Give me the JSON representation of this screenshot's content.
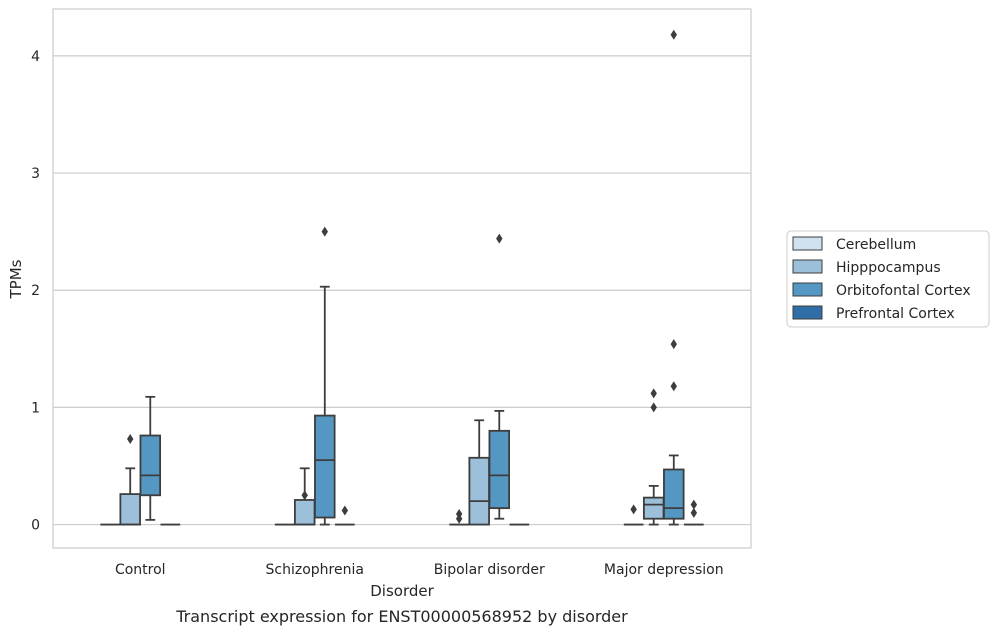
{
  "chart_data": {
    "type": "box",
    "title": "",
    "caption": "Transcript expression for ENST00000568952 by disorder",
    "xlabel": "Disorder",
    "ylabel": "TPMs",
    "ylim": [
      -0.2,
      4.4
    ],
    "yticks": [
      0,
      1,
      2,
      3,
      4
    ],
    "grid": "horizontal",
    "legend_position": "right",
    "categories": [
      "Control",
      "Schizophrenia",
      "Bipolar disorder",
      "Major depression"
    ],
    "series": [
      {
        "name": "Cerebellum",
        "color": "#d0e1ef",
        "boxes": [
          {
            "q1": 0,
            "median": 0,
            "q3": 0,
            "whisker_low": 0,
            "whisker_high": 0,
            "outliers": []
          },
          {
            "q1": 0,
            "median": 0,
            "q3": 0,
            "whisker_low": 0,
            "whisker_high": 0,
            "outliers": []
          },
          {
            "q1": 0,
            "median": 0,
            "q3": 0,
            "whisker_low": 0,
            "whisker_high": 0,
            "outliers": [
              0.05,
              0.09
            ]
          },
          {
            "q1": 0,
            "median": 0,
            "q3": 0,
            "whisker_low": 0,
            "whisker_high": 0,
            "outliers": [
              0.13
            ]
          }
        ]
      },
      {
        "name": "Hipppocampus",
        "color": "#9cc0da",
        "boxes": [
          {
            "q1": 0,
            "median": 0,
            "q3": 0.26,
            "whisker_low": 0,
            "whisker_high": 0.48,
            "outliers": [
              0.73
            ]
          },
          {
            "q1": 0,
            "median": 0,
            "q3": 0.21,
            "whisker_low": 0,
            "whisker_high": 0.48,
            "outliers": [
              0.25
            ]
          },
          {
            "q1": 0,
            "median": 0.2,
            "q3": 0.57,
            "whisker_low": 0,
            "whisker_high": 0.89,
            "outliers": []
          },
          {
            "q1": 0.05,
            "median": 0.17,
            "q3": 0.23,
            "whisker_low": 0,
            "whisker_high": 0.33,
            "outliers": [
              1.0,
              1.12
            ]
          }
        ]
      },
      {
        "name": "Orbitofontal Cortex",
        "color": "#5497c3",
        "boxes": [
          {
            "q1": 0.25,
            "median": 0.42,
            "q3": 0.76,
            "whisker_low": 0.04,
            "whisker_high": 1.09,
            "outliers": []
          },
          {
            "q1": 0.06,
            "median": 0.55,
            "q3": 0.93,
            "whisker_low": 0,
            "whisker_high": 2.03,
            "outliers": [
              2.5
            ]
          },
          {
            "q1": 0.14,
            "median": 0.42,
            "q3": 0.8,
            "whisker_low": 0.05,
            "whisker_high": 0.97,
            "outliers": [
              2.44
            ]
          },
          {
            "q1": 0.05,
            "median": 0.14,
            "q3": 0.47,
            "whisker_low": 0,
            "whisker_high": 0.59,
            "outliers": [
              1.18,
              1.54,
              4.18
            ]
          }
        ]
      },
      {
        "name": "Prefrontal Cortex",
        "color": "#2f6ea6",
        "boxes": [
          {
            "q1": 0,
            "median": 0,
            "q3": 0,
            "whisker_low": 0,
            "whisker_high": 0,
            "outliers": []
          },
          {
            "q1": 0,
            "median": 0,
            "q3": 0,
            "whisker_low": 0,
            "whisker_high": 0,
            "outliers": [
              0.12
            ]
          },
          {
            "q1": 0,
            "median": 0,
            "q3": 0,
            "whisker_low": 0,
            "whisker_high": 0,
            "outliers": []
          },
          {
            "q1": 0,
            "median": 0,
            "q3": 0,
            "whisker_low": 0,
            "whisker_high": 0,
            "outliers": [
              0.1,
              0.17
            ]
          }
        ]
      }
    ]
  }
}
